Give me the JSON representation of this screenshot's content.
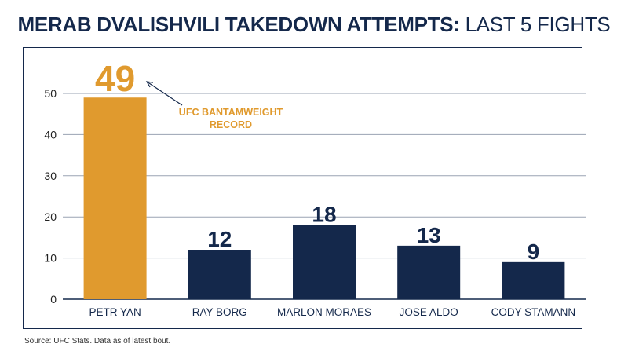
{
  "title": {
    "bold": "MERAB DVALISHVILI TAKEDOWN ATTEMPTS:",
    "light": "LAST 5 FIGHTS"
  },
  "source": "Source: UFC Stats. Data as of latest bout.",
  "colors": {
    "highlight": "#e09a2e",
    "bar": "#14284b",
    "axis": "#14284b",
    "grid": "#9aa3b3"
  },
  "chart_data": {
    "type": "bar",
    "title": "MERAB DVALISHVILI TAKEDOWN ATTEMPTS: LAST 5 FIGHTS",
    "xlabel": "",
    "ylabel": "",
    "categories": [
      "PETR YAN",
      "RAY BORG",
      "MARLON MORAES",
      "JOSE ALDO",
      "CODY STAMANN"
    ],
    "values": [
      49,
      12,
      18,
      13,
      9
    ],
    "data_labels": [
      "49",
      "12",
      "18",
      "13",
      "9"
    ],
    "highlight_index": 0,
    "yticks": [
      0,
      10,
      20,
      30,
      40,
      50
    ],
    "ylim": [
      0,
      50
    ],
    "grid": true,
    "annotation": {
      "lines": [
        "UFC BANTAMWEIGHT",
        "RECORD"
      ],
      "target_index": 0
    }
  }
}
